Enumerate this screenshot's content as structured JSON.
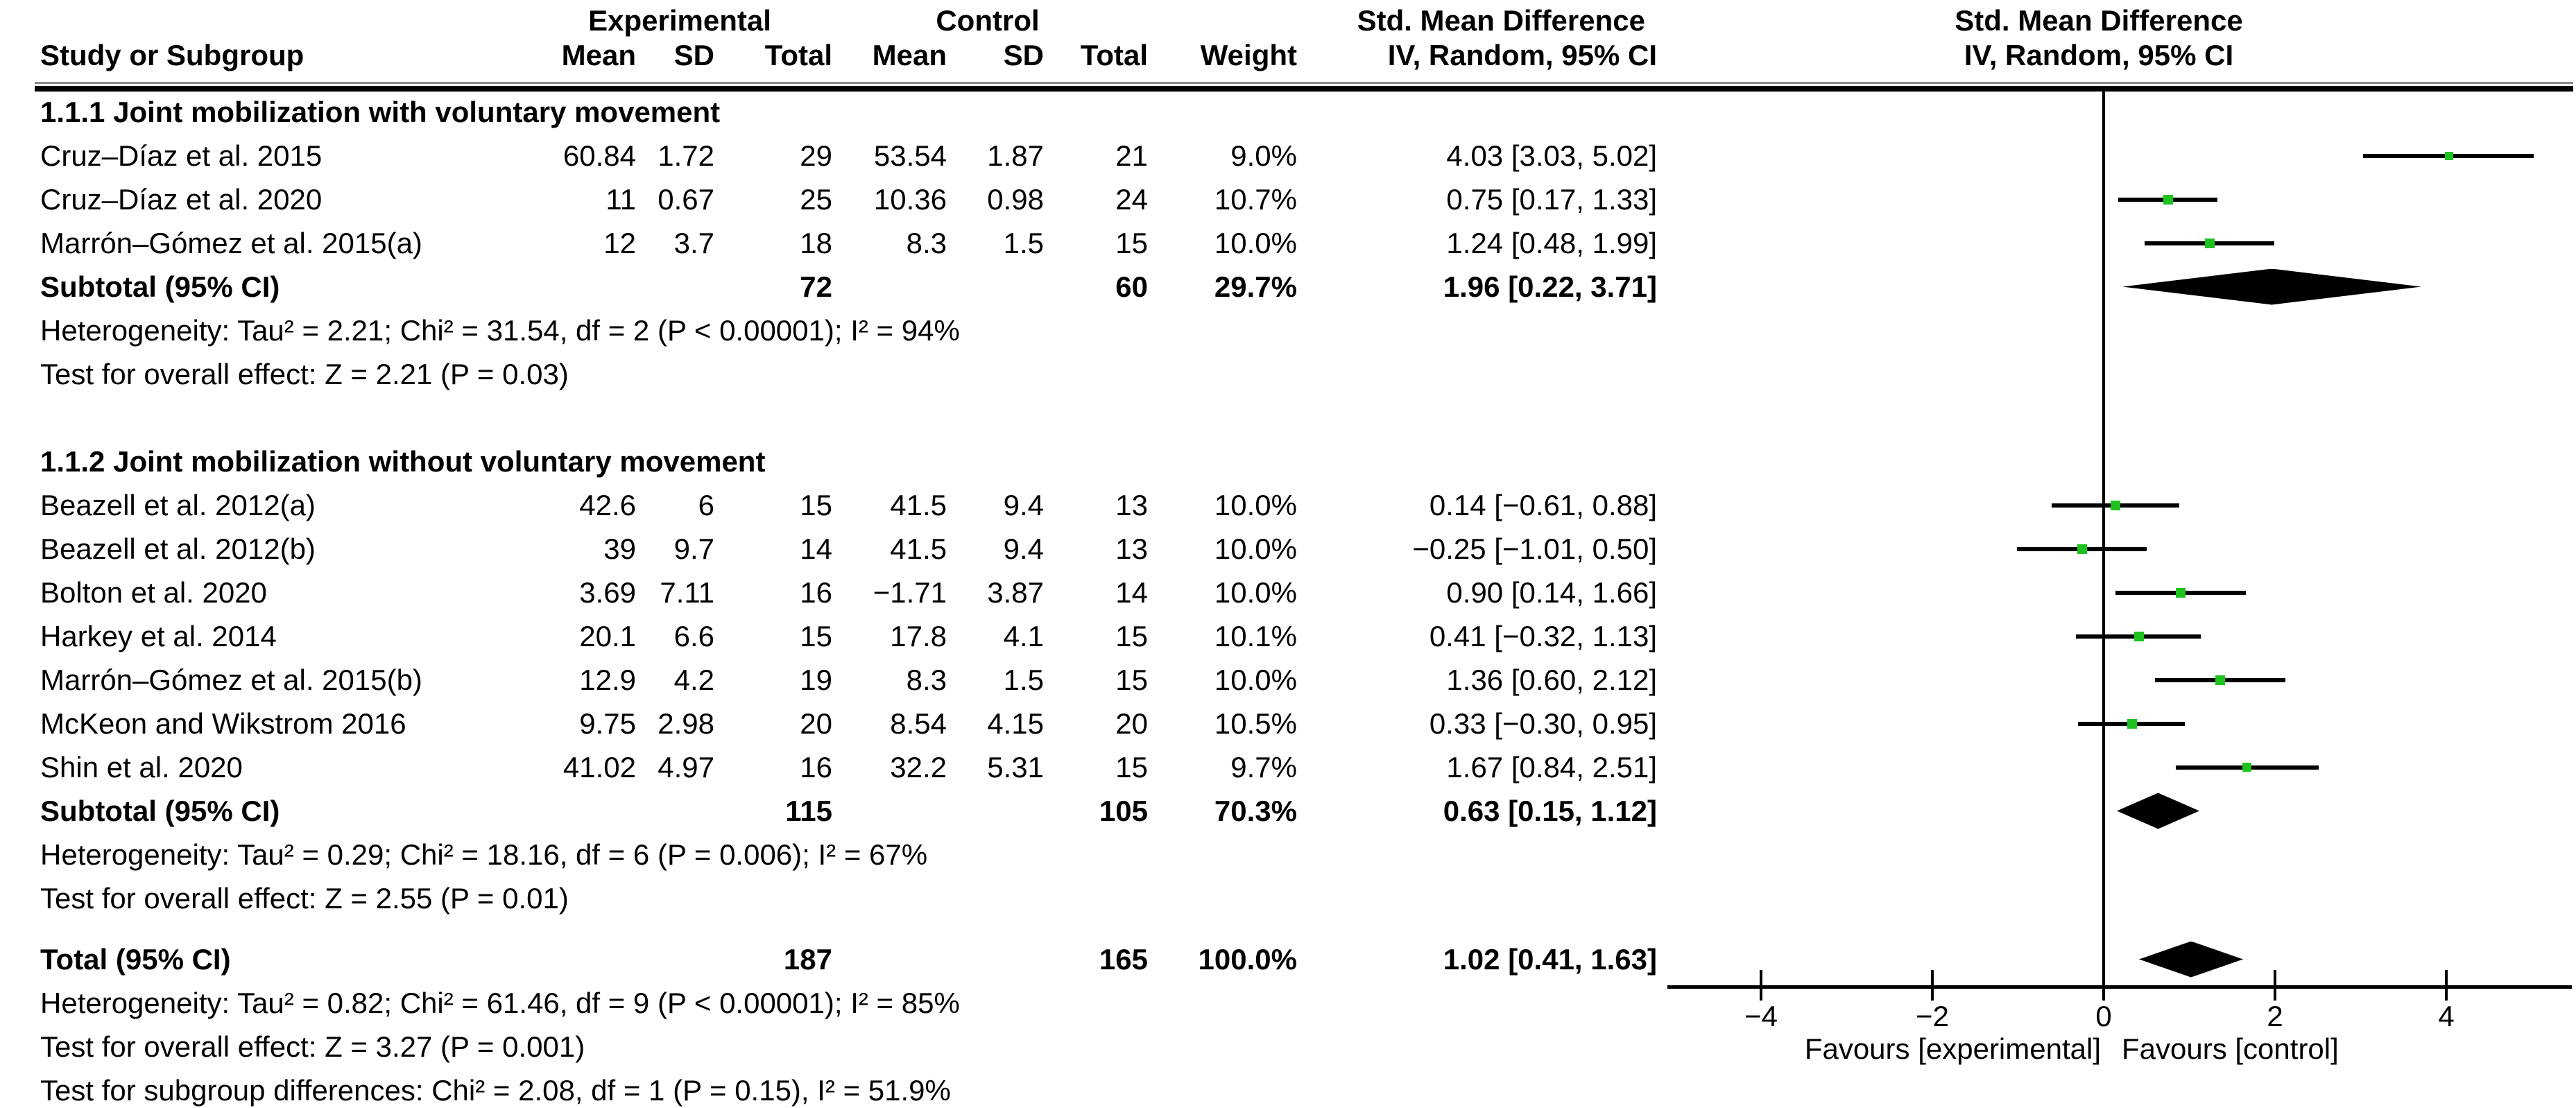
{
  "headers": {
    "experimental": "Experimental",
    "control": "Control",
    "smd_left": "Std. Mean Difference",
    "smd_right": "Std. Mean Difference",
    "study": "Study or Subgroup",
    "mean1": "Mean",
    "sd1": "SD",
    "total1": "Total",
    "mean2": "Mean",
    "sd2": "SD",
    "total2": "Total",
    "weight": "Weight",
    "ci_left": "IV, Random, 95% CI",
    "ci_right": "IV, Random, 95% CI"
  },
  "colors": {
    "marker_green": "#1fc11f",
    "line_black": "#000000",
    "diamond_black": "#000000"
  },
  "chart_data": {
    "type": "scatter",
    "variant": "forest_plot_meta_analysis",
    "effect_measure": "Std. Mean Difference, IV, Random, 95% CI",
    "x_ticks": [
      -4,
      -2,
      0,
      2,
      4
    ],
    "xlim": [
      -5.1,
      5.45
    ],
    "zero_line": 0,
    "favours_left": "Favours [experimental]",
    "favours_right": "Favours [control]",
    "rows": [
      {
        "kind": "subgroup",
        "label": "1.1.1 Joint mobilization with voluntary movement"
      },
      {
        "kind": "study",
        "label": "Cruz–Díaz et al. 2015",
        "exp_mean": "60.84",
        "exp_sd": "1.72",
        "exp_total": "29",
        "ctl_mean": "53.54",
        "ctl_sd": "1.87",
        "ctl_total": "21",
        "weight": "9.0%",
        "w": 9.0,
        "ci_text": "4.03 [3.03, 5.02]",
        "est": 4.03,
        "lo": 3.03,
        "hi": 5.02
      },
      {
        "kind": "study",
        "label": "Cruz–Díaz et al. 2020",
        "exp_mean": "11",
        "exp_sd": "0.67",
        "exp_total": "25",
        "ctl_mean": "10.36",
        "ctl_sd": "0.98",
        "ctl_total": "24",
        "weight": "10.7%",
        "w": 10.7,
        "ci_text": "0.75 [0.17, 1.33]",
        "est": 0.75,
        "lo": 0.17,
        "hi": 1.33
      },
      {
        "kind": "study",
        "label": "Marrón–Gómez et al. 2015(a)",
        "exp_mean": "12",
        "exp_sd": "3.7",
        "exp_total": "18",
        "ctl_mean": "8.3",
        "ctl_sd": "1.5",
        "ctl_total": "15",
        "weight": "10.0%",
        "w": 10.0,
        "ci_text": "1.24 [0.48, 1.99]",
        "est": 1.24,
        "lo": 0.48,
        "hi": 1.99
      },
      {
        "kind": "subtotal",
        "label": "Subtotal (95% CI)",
        "exp_total": "72",
        "ctl_total": "60",
        "weight": "29.7%",
        "ci_text": "1.96 [0.22, 3.71]",
        "est": 1.96,
        "lo": 0.22,
        "hi": 3.71
      },
      {
        "kind": "note",
        "label": "Heterogeneity: Tau² = 2.21; Chi² = 31.54, df = 2 (P < 0.00001); I² = 94%"
      },
      {
        "kind": "note",
        "label": "Test for overall effect: Z = 2.21 (P = 0.03)"
      },
      {
        "kind": "spacer"
      },
      {
        "kind": "subgroup",
        "label": "1.1.2 Joint mobilization without voluntary movement"
      },
      {
        "kind": "study",
        "label": "Beazell et al. 2012(a)",
        "exp_mean": "42.6",
        "exp_sd": "6",
        "exp_total": "15",
        "ctl_mean": "41.5",
        "ctl_sd": "9.4",
        "ctl_total": "13",
        "weight": "10.0%",
        "w": 10.0,
        "ci_text": "0.14 [−0.61, 0.88]",
        "est": 0.14,
        "lo": -0.61,
        "hi": 0.88
      },
      {
        "kind": "study",
        "label": "Beazell et al. 2012(b)",
        "exp_mean": "39",
        "exp_sd": "9.7",
        "exp_total": "14",
        "ctl_mean": "41.5",
        "ctl_sd": "9.4",
        "ctl_total": "13",
        "weight": "10.0%",
        "w": 10.0,
        "ci_text": "−0.25 [−1.01, 0.50]",
        "est": -0.25,
        "lo": -1.01,
        "hi": 0.5
      },
      {
        "kind": "study",
        "label": "Bolton et al. 2020",
        "exp_mean": "3.69",
        "exp_sd": "7.11",
        "exp_total": "16",
        "ctl_mean": "−1.71",
        "ctl_sd": "3.87",
        "ctl_total": "14",
        "weight": "10.0%",
        "w": 10.0,
        "ci_text": "0.90 [0.14, 1.66]",
        "est": 0.9,
        "lo": 0.14,
        "hi": 1.66
      },
      {
        "kind": "study",
        "label": "Harkey et al. 2014",
        "exp_mean": "20.1",
        "exp_sd": "6.6",
        "exp_total": "15",
        "ctl_mean": "17.8",
        "ctl_sd": "4.1",
        "ctl_total": "15",
        "weight": "10.1%",
        "w": 10.1,
        "ci_text": "0.41 [−0.32, 1.13]",
        "est": 0.41,
        "lo": -0.32,
        "hi": 1.13
      },
      {
        "kind": "study",
        "label": "Marrón–Gómez et al. 2015(b)",
        "exp_mean": "12.9",
        "exp_sd": "4.2",
        "exp_total": "19",
        "ctl_mean": "8.3",
        "ctl_sd": "1.5",
        "ctl_total": "15",
        "weight": "10.0%",
        "w": 10.0,
        "ci_text": "1.36 [0.60, 2.12]",
        "est": 1.36,
        "lo": 0.6,
        "hi": 2.12
      },
      {
        "kind": "study",
        "label": "McKeon and Wikstrom 2016",
        "exp_mean": "9.75",
        "exp_sd": "2.98",
        "exp_total": "20",
        "ctl_mean": "8.54",
        "ctl_sd": "4.15",
        "ctl_total": "20",
        "weight": "10.5%",
        "w": 10.5,
        "ci_text": "0.33 [−0.30, 0.95]",
        "est": 0.33,
        "lo": -0.3,
        "hi": 0.95
      },
      {
        "kind": "study",
        "label": "Shin et al. 2020",
        "exp_mean": "41.02",
        "exp_sd": "4.97",
        "exp_total": "16",
        "ctl_mean": "32.2",
        "ctl_sd": "5.31",
        "ctl_total": "15",
        "weight": "9.7%",
        "w": 9.7,
        "ci_text": "1.67 [0.84, 2.51]",
        "est": 1.67,
        "lo": 0.84,
        "hi": 2.51
      },
      {
        "kind": "subtotal",
        "label": "Subtotal (95% CI)",
        "exp_total": "115",
        "ctl_total": "105",
        "weight": "70.3%",
        "ci_text": "0.63 [0.15, 1.12]",
        "est": 0.63,
        "lo": 0.15,
        "hi": 1.12
      },
      {
        "kind": "note",
        "label": "Heterogeneity: Tau² = 0.29; Chi² = 18.16, df = 6 (P = 0.006); I² = 67%"
      },
      {
        "kind": "note",
        "label": "Test for overall effect: Z = 2.55 (P = 0.01)"
      },
      {
        "kind": "spacer",
        "small": true
      },
      {
        "kind": "total",
        "label": "Total (95% CI)",
        "exp_total": "187",
        "ctl_total": "165",
        "weight": "100.0%",
        "ci_text": "1.02 [0.41, 1.63]",
        "est": 1.02,
        "lo": 0.41,
        "hi": 1.63
      },
      {
        "kind": "note",
        "label": "Heterogeneity: Tau² = 0.82; Chi² = 61.46, df = 9 (P < 0.00001); I² = 85%"
      },
      {
        "kind": "note",
        "label": "Test for overall effect: Z = 3.27 (P = 0.001)"
      },
      {
        "kind": "note",
        "label": "Test for subgroup differences: Chi² = 2.08, df = 1 (P = 0.15), I² = 51.9%"
      }
    ]
  }
}
